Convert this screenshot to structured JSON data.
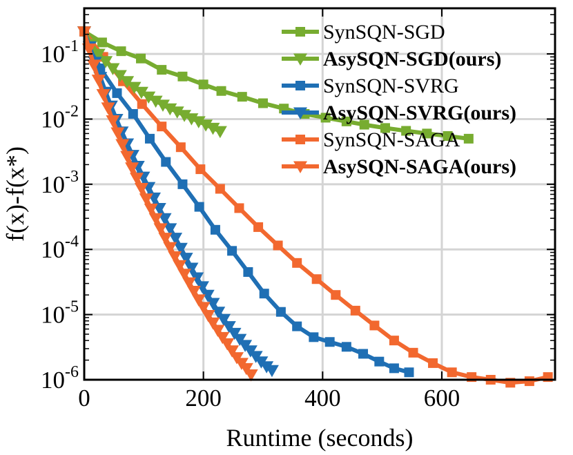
{
  "chart_data": {
    "type": "line",
    "title": "",
    "xlabel": "Runtime (seconds)",
    "ylabel": "f(x)-f(x*)",
    "xlim": [
      0,
      790
    ],
    "ylim_exponent": [
      -6,
      -0.3
    ],
    "yscale": "log",
    "grid": true,
    "legend_position": "top-right",
    "x_ticks": [
      {
        "value": 0,
        "label": "0"
      },
      {
        "value": 200,
        "label": "200"
      },
      {
        "value": 400,
        "label": "400"
      },
      {
        "value": 600,
        "label": "600"
      }
    ],
    "y_ticks": [
      {
        "exp": -1,
        "base": "10",
        "sup": "-1"
      },
      {
        "exp": -2,
        "base": "10",
        "sup": "-2"
      },
      {
        "exp": -3,
        "base": "10",
        "sup": "-3"
      },
      {
        "exp": -4,
        "base": "10",
        "sup": "-4"
      },
      {
        "exp": -5,
        "base": "10",
        "sup": "-5"
      },
      {
        "exp": -6,
        "base": "10",
        "sup": "-6"
      }
    ],
    "series": [
      {
        "name": "SynSQN-SGD",
        "bold": false,
        "color": "#77AC30",
        "marker": "square",
        "x": [
          0,
          30,
          62,
          95,
          130,
          165,
          200,
          230,
          265,
          300,
          335,
          370,
          405,
          440,
          470,
          505,
          540,
          575,
          610,
          645
        ],
        "y": [
          0.22,
          0.15,
          0.11,
          0.085,
          0.057,
          0.045,
          0.034,
          0.027,
          0.022,
          0.0175,
          0.0145,
          0.012,
          0.0105,
          0.0092,
          0.0082,
          0.0073,
          0.0066,
          0.006,
          0.0055,
          0.005
        ]
      },
      {
        "name": "AsySQN-SGD(ours)",
        "bold": true,
        "color": "#77AC30",
        "marker": "triangle-down",
        "x": [
          0,
          12,
          24,
          36,
          48,
          60,
          72,
          84,
          96,
          108,
          120,
          132,
          144,
          156,
          168,
          180,
          192,
          204,
          216,
          228
        ],
        "y": [
          0.22,
          0.14,
          0.1,
          0.077,
          0.06,
          0.047,
          0.038,
          0.031,
          0.026,
          0.022,
          0.019,
          0.0165,
          0.0145,
          0.013,
          0.0115,
          0.0102,
          0.0092,
          0.0082,
          0.0073,
          0.0065
        ]
      },
      {
        "name": "SynSQN-SVRG",
        "bold": false,
        "color": "#1F6FB4",
        "marker": "square",
        "x": [
          0,
          27,
          55,
          82,
          110,
          137,
          165,
          193,
          220,
          248,
          275,
          302,
          330,
          357,
          385,
          412,
          440,
          468,
          495,
          520,
          545
        ],
        "y": [
          0.22,
          0.06,
          0.025,
          0.012,
          0.005,
          0.0022,
          0.001,
          0.00045,
          0.0002,
          9.5e-05,
          4.5e-05,
          2.1e-05,
          1.1e-05,
          6.6e-06,
          4.5e-06,
          3.8e-06,
          3.2e-06,
          2.5e-06,
          1.9e-06,
          1.5e-06,
          1.3e-06
        ]
      },
      {
        "name": "AsySQN-SVRG(ours)",
        "bold": true,
        "color": "#1F6FB4",
        "marker": "triangle-down",
        "x": [
          0,
          9,
          18,
          27,
          36,
          45,
          54,
          63,
          72,
          81,
          90,
          99,
          108,
          117,
          126,
          135,
          144,
          153,
          162,
          171,
          180,
          189,
          198,
          207,
          216,
          225,
          234,
          243,
          252,
          261,
          270,
          279,
          288,
          297,
          306,
          315
        ],
        "y": [
          0.22,
          0.13,
          0.075,
          0.044,
          0.026,
          0.016,
          0.01,
          0.0064,
          0.0042,
          0.0028,
          0.0019,
          0.0013,
          0.0009,
          0.00062,
          0.00043,
          0.0003,
          0.00021,
          0.00015,
          0.000105,
          7.4e-05,
          5.2e-05,
          3.7e-05,
          2.7e-05,
          2e-05,
          1.5e-05,
          1.1e-05,
          8.5e-06,
          6.6e-06,
          5.2e-06,
          4.2e-06,
          3.4e-06,
          2.8e-06,
          2.3e-06,
          1.9e-06,
          1.6e-06,
          1.4e-06
        ]
      },
      {
        "name": "SynSQN-SAGA",
        "bold": false,
        "color": "#F2682F",
        "marker": "square",
        "x": [
          0,
          32,
          65,
          97,
          130,
          162,
          195,
          228,
          260,
          292,
          325,
          357,
          390,
          422,
          455,
          487,
          520,
          552,
          585,
          617,
          650,
          682,
          715,
          747,
          778
        ],
        "y": [
          0.22,
          0.09,
          0.038,
          0.017,
          0.0077,
          0.0037,
          0.0017,
          0.00085,
          0.00043,
          0.00022,
          0.000115,
          6.2e-05,
          3.5e-05,
          2e-05,
          1.15e-05,
          6.8e-06,
          4e-06,
          2.6e-06,
          1.8e-06,
          1.3e-06,
          1.1e-06,
          1e-06,
          9e-07,
          9.5e-07,
          1.1e-06
        ]
      },
      {
        "name": "AsySQN-SAGA(ours)",
        "bold": true,
        "color": "#F2682F",
        "marker": "triangle-down",
        "x": [
          0,
          8,
          16,
          24,
          32,
          40,
          48,
          56,
          64,
          72,
          80,
          88,
          96,
          104,
          112,
          120,
          128,
          136,
          144,
          152,
          160,
          168,
          176,
          184,
          192,
          200,
          208,
          216,
          224,
          232,
          240,
          248,
          256,
          264,
          272,
          280
        ],
        "y": [
          0.22,
          0.12,
          0.068,
          0.04,
          0.024,
          0.015,
          0.0095,
          0.0062,
          0.0041,
          0.0027,
          0.0018,
          0.00125,
          0.00087,
          0.0006,
          0.00042,
          0.0003,
          0.00021,
          0.00015,
          0.000108,
          7.8e-05,
          5.7e-05,
          4.2e-05,
          3.1e-05,
          2.3e-05,
          1.7e-05,
          1.3e-05,
          9.8e-06,
          7.5e-06,
          5.8e-06,
          4.5e-06,
          3.6e-06,
          2.8e-06,
          2.2e-06,
          1.8e-06,
          1.5e-06,
          1.2e-06
        ]
      }
    ]
  }
}
